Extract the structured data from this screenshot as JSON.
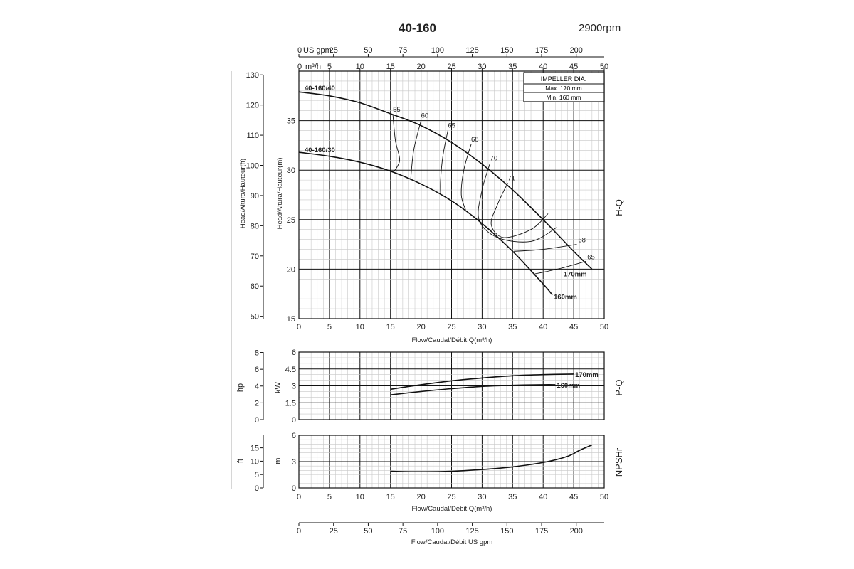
{
  "header": {
    "title": "40-160",
    "speed": "2900rpm"
  },
  "impeller_box": {
    "title": "IMPELLER DIA.",
    "max": "Max.  170 mm",
    "min": "Min.  160 mm"
  },
  "chart_data": [
    {
      "id": "hq",
      "type": "line",
      "panel_label": "H-Q",
      "xlabel": "Flow/Caudal/Débit Q(m³/h)",
      "ylabel_m": "Head/Altura/Hauteur(m)",
      "ylabel_ft": "Head/Altura/Hauteur(ft)",
      "xlim": [
        0,
        50
      ],
      "ylim": [
        15,
        40
      ],
      "y_ticks_m": [
        15,
        20,
        25,
        30,
        35
      ],
      "y_ticks_ft": [
        50,
        60,
        70,
        80,
        90,
        100,
        110,
        120,
        130
      ],
      "x_ticks_top_m3h": [
        0,
        5,
        10,
        15,
        20,
        25,
        30,
        35,
        40,
        45,
        50
      ],
      "x_ticks_top_usgpm": [
        0,
        25,
        50,
        75,
        100,
        125,
        150,
        175,
        200
      ],
      "top_axis_labels": {
        "usgpm": "US gpm",
        "m3h": "m³/h"
      },
      "series": [
        {
          "name": "170mm",
          "model": "40-160/40",
          "x": [
            0,
            5,
            10,
            15,
            20,
            25,
            30,
            35,
            40,
            45,
            48
          ],
          "y": [
            37.9,
            37.5,
            36.8,
            35.7,
            34.5,
            32.8,
            30.6,
            28.0,
            25.0,
            21.8,
            20.0
          ]
        },
        {
          "name": "160mm",
          "model": "40-160/30",
          "x": [
            0,
            5,
            10,
            15,
            20,
            25,
            30,
            35,
            40,
            41.5
          ],
          "y": [
            31.8,
            31.4,
            30.8,
            29.9,
            28.6,
            26.9,
            24.6,
            21.8,
            18.5,
            17.4
          ]
        }
      ],
      "efficiency_curves": [
        {
          "label": "55",
          "x": [
            15.4,
            15.8,
            16.5,
            15.5
          ],
          "y": [
            35.6,
            33.0,
            31.0,
            29.8
          ]
        },
        {
          "label": "60",
          "x": [
            20.0,
            18.8,
            18.3
          ],
          "y": [
            35.0,
            32.0,
            29.0
          ]
        },
        {
          "label": "65",
          "x": [
            24.4,
            23.6,
            23.2,
            23.2
          ],
          "y": [
            34.0,
            31.5,
            29.0,
            27.5
          ]
        },
        {
          "label": "68",
          "x": [
            28.2,
            27.0,
            26.6,
            27.3
          ],
          "y": [
            32.6,
            30.0,
            27.5,
            26.0
          ]
        },
        {
          "label": "70",
          "x": [
            31.3,
            30.0,
            29.5,
            32.5,
            38.0,
            42.2
          ],
          "y": [
            30.7,
            28.0,
            25.0,
            23.2,
            22.8,
            24.2
          ]
        },
        {
          "label": "71",
          "x": [
            34.2,
            32.5,
            31.5,
            33.5,
            38.0,
            40.8
          ],
          "y": [
            28.7,
            26.5,
            24.5,
            23.2,
            24.0,
            25.6
          ]
        },
        {
          "label": "68",
          "x": [
            35.2,
            40.0,
            45.5
          ],
          "y": [
            21.8,
            22.0,
            22.5
          ]
        },
        {
          "label": "65",
          "x": [
            38.5,
            43.0,
            47.0
          ],
          "y": [
            19.5,
            20.1,
            20.8
          ]
        }
      ],
      "model_labels": [
        "40-160/40",
        "40-160/30"
      ],
      "diameter_labels": [
        "170mm",
        "160mm"
      ]
    },
    {
      "id": "pq",
      "type": "line",
      "panel_label": "P-Q",
      "ylim": [
        0,
        6
      ],
      "y_ticks_kw": [
        "0",
        "1.5",
        "3",
        "4.5",
        "6"
      ],
      "y_ticks_hp": [
        "0",
        "2",
        "4",
        "6",
        "8"
      ],
      "ylabel_kw": "kW",
      "ylabel_hp": "hp",
      "series": [
        {
          "name": "170mm",
          "x": [
            15,
            20,
            25,
            30,
            35,
            40,
            45
          ],
          "y": [
            2.7,
            3.1,
            3.45,
            3.7,
            3.9,
            4.0,
            4.05
          ]
        },
        {
          "name": "160mm",
          "x": [
            15,
            20,
            25,
            30,
            35,
            40,
            42
          ],
          "y": [
            2.2,
            2.5,
            2.75,
            2.95,
            3.05,
            3.1,
            3.1
          ]
        }
      ]
    },
    {
      "id": "npsh",
      "type": "line",
      "panel_label": "NPSHr",
      "xlabel": "Flow/Caudal/Débit Q(m³/h)",
      "ylim": [
        0,
        6
      ],
      "y_ticks_m": [
        "0",
        "3",
        "6"
      ],
      "y_ticks_ft": [
        "0",
        "5",
        "10",
        "15"
      ],
      "ylabel_m": "m",
      "ylabel_ft": "ft",
      "x_ticks": [
        0,
        5,
        10,
        15,
        20,
        25,
        30,
        35,
        40,
        45,
        50
      ],
      "series": [
        {
          "name": "NPSHr",
          "x": [
            15,
            20,
            25,
            30,
            35,
            40,
            44,
            46,
            48
          ],
          "y": [
            1.9,
            1.85,
            1.9,
            2.1,
            2.4,
            2.9,
            3.6,
            4.3,
            4.9
          ]
        }
      ]
    },
    {
      "id": "usgpm_axis",
      "type": "axis",
      "xlabel": "Flow/Caudal/Débit  US gpm",
      "x_ticks": [
        0,
        25,
        50,
        75,
        100,
        125,
        150,
        175,
        200
      ]
    }
  ]
}
